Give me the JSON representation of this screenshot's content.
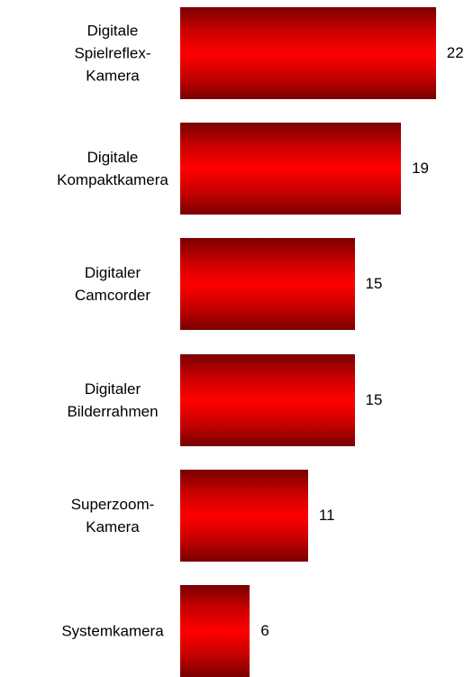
{
  "chart_data": {
    "type": "bar",
    "orientation": "horizontal",
    "categories": [
      "Digitale\nSpielreflex-\nKamera",
      "Digitale\nKompaktkamera",
      "Digitaler\nCamcorder",
      "Digitaler\nBilderrahmen",
      "Superzoom-\nKamera",
      "Systemkamera"
    ],
    "values": [
      22,
      19,
      15,
      15,
      11,
      6
    ],
    "color": "#ff0000"
  }
}
